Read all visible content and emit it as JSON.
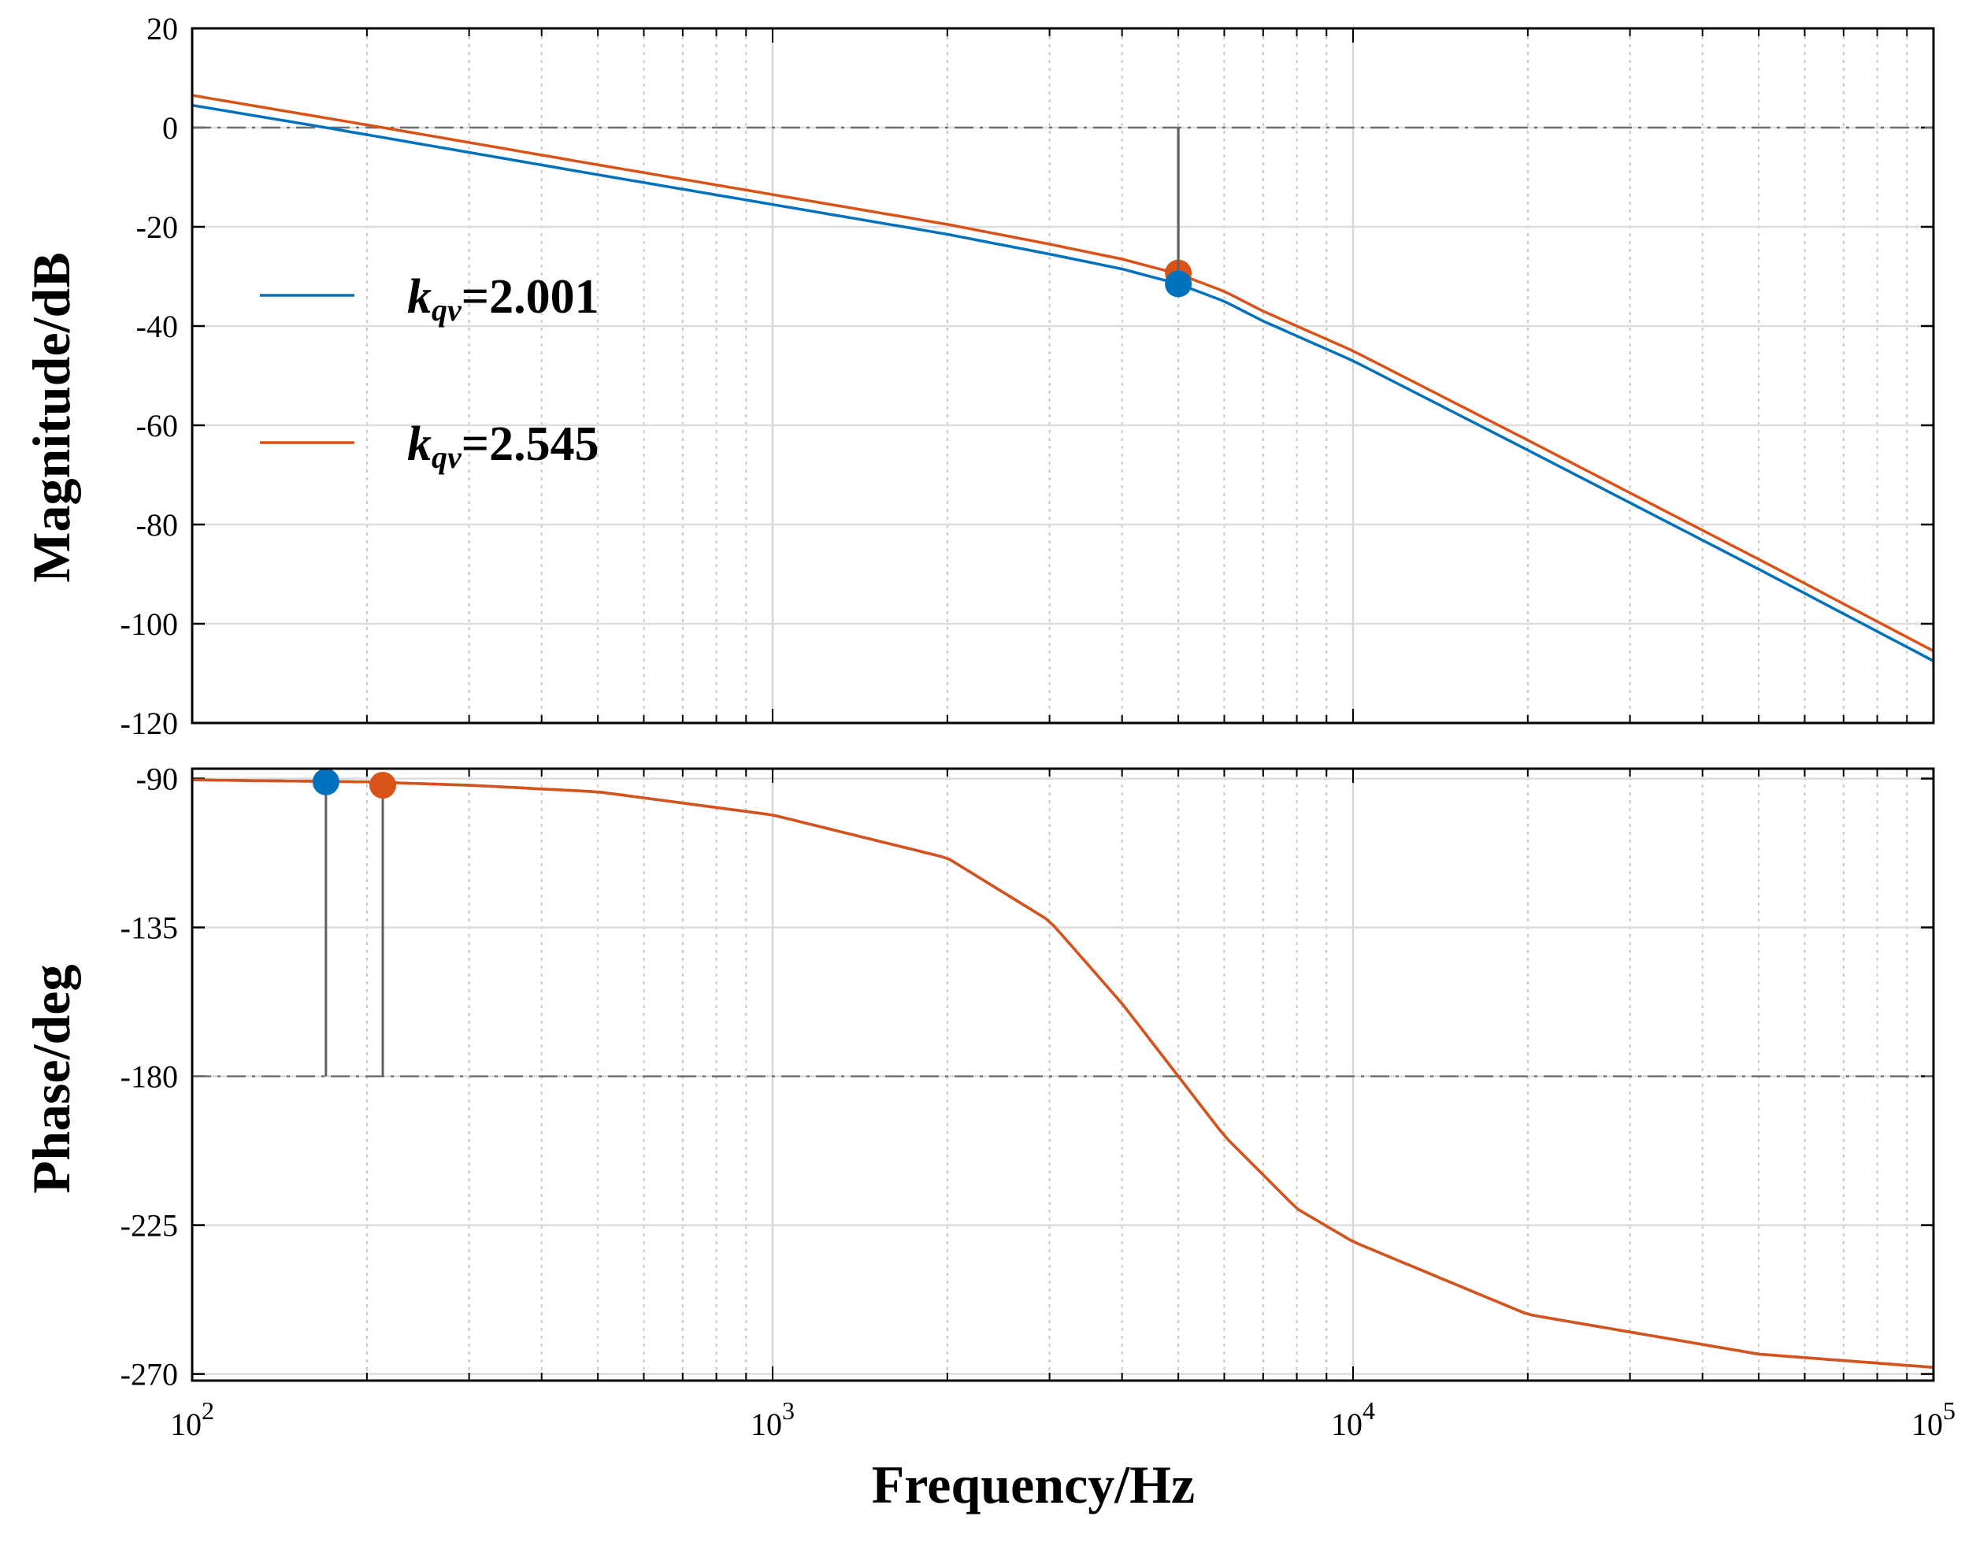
{
  "chart_data": [
    {
      "type": "line",
      "title": "",
      "xscale": "log",
      "xlim": [
        100,
        100000
      ],
      "ylim": [
        -120,
        20
      ],
      "ylabel": "Magnitude/dB",
      "xlabel": "",
      "yticks": [
        "20",
        "0",
        "-20",
        "-40",
        "-60",
        "-80",
        "-100",
        "-120"
      ],
      "ytick_values": [
        20,
        0,
        -20,
        -40,
        -60,
        -80,
        -100,
        -120
      ],
      "grid": true,
      "reference_line": {
        "value": 0,
        "style": "dash-dot"
      },
      "series": [
        {
          "name": "k_qv=2.001",
          "color": "#0072BD",
          "x": [
            100,
            170,
            300,
            500,
            1000,
            2000,
            3000,
            4000,
            5000,
            6000,
            7000,
            10000,
            20000,
            50000,
            100000
          ],
          "y": [
            4.5,
            0,
            -5,
            -9.5,
            -15.5,
            -21.5,
            -25.5,
            -28.5,
            -31.5,
            -35,
            -39,
            -47,
            -65,
            -89,
            -107.5
          ]
        },
        {
          "name": "k_qv=2.545",
          "color": "#D95319",
          "x": [
            100,
            213,
            300,
            500,
            1000,
            2000,
            3000,
            4000,
            5000,
            6000,
            7000,
            10000,
            20000,
            50000,
            100000
          ],
          "y": [
            6.5,
            0,
            -3,
            -7.5,
            -13.5,
            -19.5,
            -23.5,
            -26.5,
            -29.5,
            -33,
            -37,
            -45,
            -63,
            -87,
            -105.5
          ]
        }
      ],
      "markers": [
        {
          "series": "k_qv=2.545",
          "x": 5000,
          "y": -29.3,
          "color": "#D95319"
        },
        {
          "series": "k_qv=2.001",
          "x": 5000,
          "y": -31.5,
          "color": "#0072BD"
        }
      ],
      "legend": {
        "position": "upper-left",
        "entries": [
          {
            "k": "k",
            "sub": "qv",
            "value": "=2.001",
            "color": "#0072BD"
          },
          {
            "k": "k",
            "sub": "qv",
            "value": "=2.545",
            "color": "#D95319"
          }
        ]
      }
    },
    {
      "type": "line",
      "title": "",
      "xscale": "log",
      "xlim": [
        100,
        100000
      ],
      "ylim": [
        -272,
        -87
      ],
      "ylabel": "Phase/deg",
      "xlabel": "Frequency/Hz",
      "yticks": [
        "-90",
        "-135",
        "-180",
        "-225",
        "-270"
      ],
      "ytick_values": [
        -90,
        -135,
        -180,
        -225,
        -270
      ],
      "xtick_values": [
        100,
        1000,
        10000,
        100000
      ],
      "xtick_bases": [
        "10",
        "10",
        "10",
        "10"
      ],
      "xtick_exponents": [
        "2",
        "3",
        "4",
        "5"
      ],
      "grid": true,
      "reference_line": {
        "value": -180,
        "style": "dash-dot"
      },
      "series": [
        {
          "name": "k_qv=2.001",
          "color": "#0072BD",
          "x": [
            100,
            200,
            300,
            500,
            1000,
            2000,
            3000,
            4000,
            5000,
            6000,
            8000,
            10000,
            20000,
            50000,
            100000
          ],
          "y": [
            -90.4,
            -91,
            -92,
            -94,
            -101,
            -114,
            -133,
            -158,
            -180,
            -198,
            -220,
            -230,
            -252,
            -264,
            -268
          ]
        },
        {
          "name": "k_qv=2.545",
          "color": "#D95319",
          "x": [
            100,
            200,
            300,
            500,
            1000,
            2000,
            3000,
            4000,
            5000,
            6000,
            8000,
            10000,
            20000,
            50000,
            100000
          ],
          "y": [
            -90.4,
            -91,
            -92,
            -94,
            -101,
            -114,
            -133,
            -158,
            -180,
            -198,
            -220,
            -230,
            -252,
            -264,
            -268
          ]
        }
      ],
      "markers": [
        {
          "series": "k_qv=2.001",
          "x": 170,
          "y": -91,
          "color": "#0072BD"
        },
        {
          "series": "k_qv=2.545",
          "x": 213,
          "y": -92,
          "color": "#D95319"
        }
      ]
    }
  ]
}
